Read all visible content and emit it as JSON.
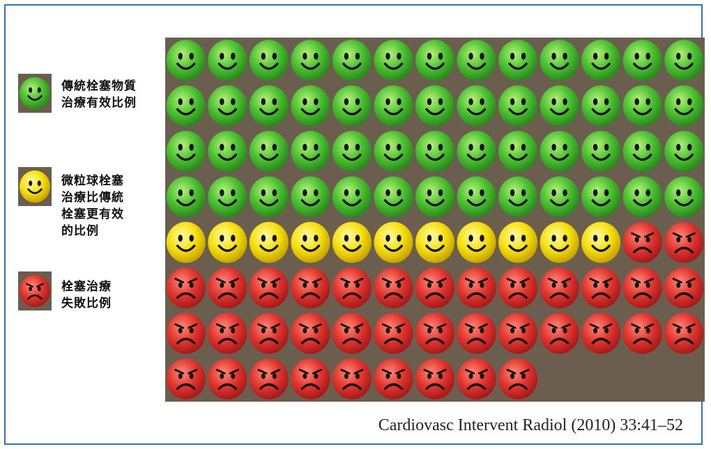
{
  "colors": {
    "frame": "#2a74c2",
    "panel_background": "#6b5e4f",
    "green": "#4cc232",
    "yellow": "#f6e10c",
    "red": "#e2362e"
  },
  "legend": [
    {
      "text": "傳統栓塞物質\n治療有效比例",
      "category": "conventional_effective",
      "face": "smile",
      "color": "green"
    },
    {
      "text": "微粒球栓塞\n治療比傳統\n栓塞更有效\n的比例",
      "category": "microsphere_more_effective",
      "face": "smile",
      "color": "yellow"
    },
    {
      "text": "栓塞治療\n失敗比例",
      "category": "failure",
      "face": "frown",
      "color": "red"
    }
  ],
  "chart_data": {
    "type": "waffle",
    "columns": 13,
    "rows": 8,
    "total": 100,
    "categories": [
      "傳統栓塞物質治療有效比例",
      "微粒球栓塞治療比傳統栓塞更有效的比例",
      "栓塞治療失敗比例"
    ],
    "values": [
      52,
      11,
      37
    ],
    "colors": [
      "green",
      "yellow",
      "red"
    ],
    "faces": [
      "smile",
      "smile",
      "frown"
    ]
  },
  "citation": "Cardiovasc Intervent Radiol (2010) 33:41–52"
}
